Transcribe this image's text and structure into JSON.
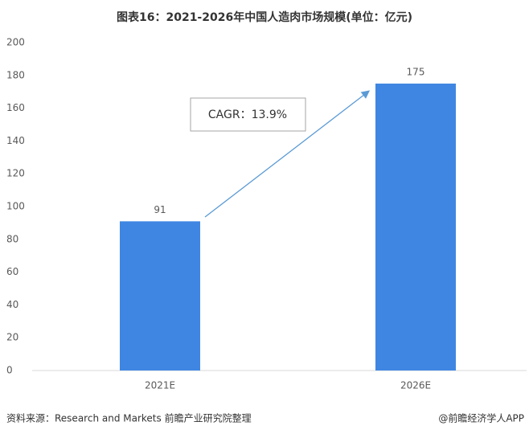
{
  "chart_data": {
    "type": "bar",
    "title": "图表16：2021-2026年中国人造肉市场规模(单位：亿元)",
    "categories": [
      "2021E",
      "2026E"
    ],
    "values": [
      91,
      175
    ],
    "color": "#3f86e2",
    "ylim": [
      0,
      200
    ],
    "yticks": [
      0,
      20,
      40,
      60,
      80,
      100,
      120,
      140,
      160,
      180,
      200
    ],
    "grid": false,
    "annotation": "CAGR：13.9%",
    "source": "资料来源：Research and Markets 前瞻产业研究院整理",
    "credit": "@前瞻经济学人APP"
  }
}
